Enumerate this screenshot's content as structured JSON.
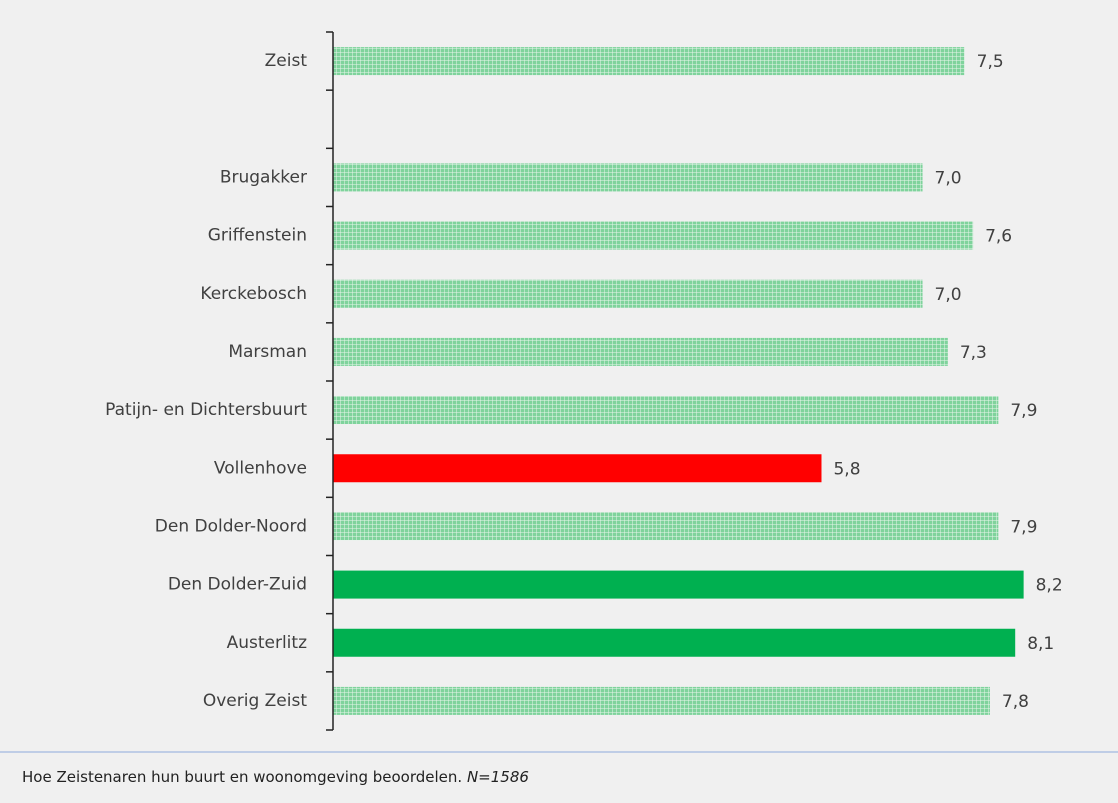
{
  "chart_data": {
    "type": "bar",
    "orientation": "horizontal",
    "categories": [
      "Zeist",
      null,
      "Brugakker",
      "Griffenstein",
      "Kerckebosch",
      "Marsman",
      "Patijn- en Dichtersbuurt",
      "Vollenhove",
      "Den Dolder-Noord",
      "Den Dolder-Zuid",
      "Austerlitz",
      "Overig Zeist"
    ],
    "values": [
      7.5,
      null,
      7.0,
      7.6,
      7.0,
      7.3,
      7.9,
      5.8,
      7.9,
      8.2,
      8.1,
      7.8
    ],
    "value_labels": [
      "7,5",
      null,
      "7,0",
      "7,6",
      "7,0",
      "7,3",
      "7,9",
      "5,8",
      "7,9",
      "8,2",
      "8,1",
      "7,8"
    ],
    "colors": [
      "#7fd39c",
      null,
      "#7fd39c",
      "#7fd39c",
      "#7fd39c",
      "#7fd39c",
      "#7fd39c",
      "#ff0000",
      "#7fd39c",
      "#00b050",
      "#00b050",
      "#7fd39c"
    ],
    "hatched": [
      true,
      null,
      true,
      true,
      true,
      true,
      true,
      false,
      true,
      false,
      false,
      true
    ],
    "xlim": [
      0,
      9
    ]
  },
  "caption": {
    "text": "Hoe Zeistenaren hun buurt en woonomgeving beoordelen.",
    "note": "N=1586"
  }
}
